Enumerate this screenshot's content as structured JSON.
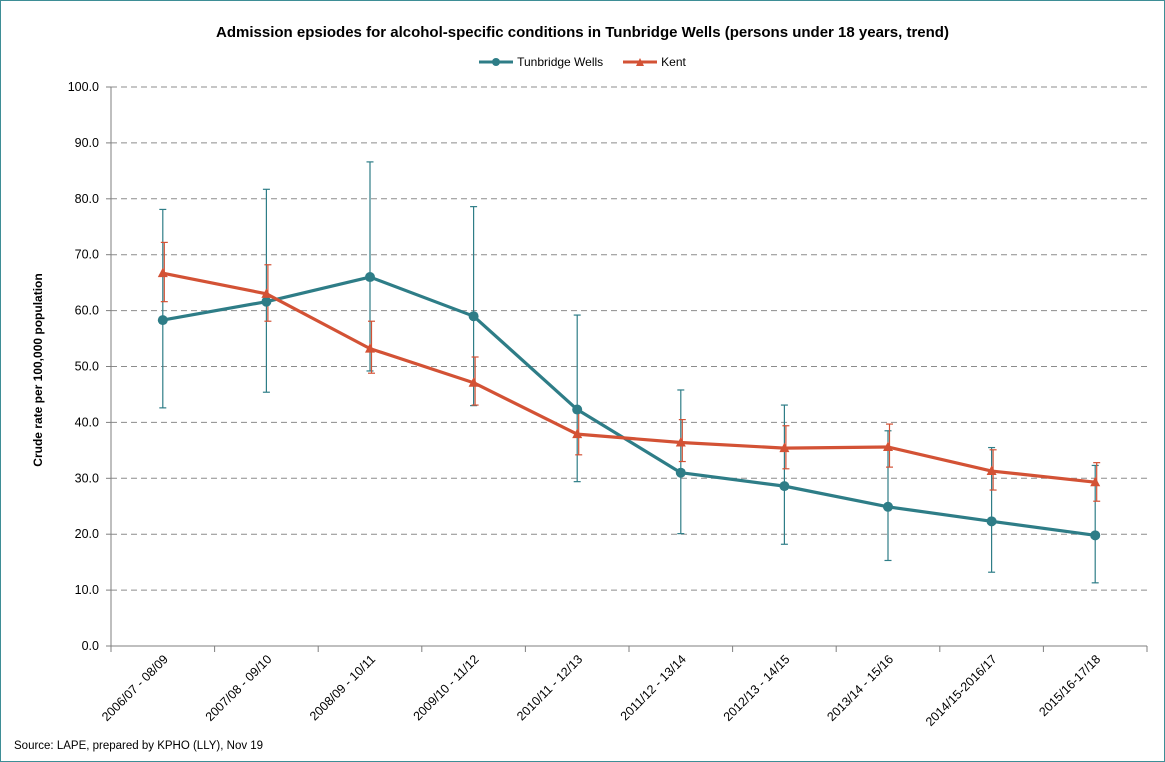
{
  "chart_data": {
    "type": "line",
    "title": "Admission epsiodes for alcohol-specific conditions in Tunbridge Wells (persons under 18 years, trend)",
    "ylabel": "Crude rate per 100,000 population",
    "xlabel": "",
    "ylim": [
      0,
      100
    ],
    "yticks": [
      "0.0",
      "10.0",
      "20.0",
      "30.0",
      "40.0",
      "50.0",
      "60.0",
      "70.0",
      "80.0",
      "90.0",
      "100.0"
    ],
    "grid": "horizontal dashed",
    "legend_position": "top",
    "categories": [
      "2006/07 - 08/09",
      "2007/08 - 09/10",
      "2008/09 - 10/11",
      "2009/10 - 11/12",
      "2010/11 - 12/13",
      "2011/12 - 13/14",
      "2012/13 - 14/15",
      "2013/14 - 15/16",
      "2014/15-2016/17",
      "2015/16-17/18"
    ],
    "series": [
      {
        "name": "Tunbridge Wells",
        "color": "#2e7d87",
        "marker": "circle",
        "values": [
          58.3,
          61.6,
          66.0,
          59.0,
          42.3,
          31.0,
          28.6,
          24.9,
          22.3,
          19.8
        ],
        "lower": [
          42.6,
          45.4,
          49.2,
          43.0,
          29.4,
          20.1,
          18.2,
          15.3,
          13.2,
          11.3
        ],
        "upper": [
          78.1,
          81.7,
          86.6,
          78.6,
          59.2,
          45.8,
          43.1,
          38.5,
          35.5,
          32.3
        ]
      },
      {
        "name": "Kent",
        "color": "#d35235",
        "marker": "triangle",
        "values": [
          66.7,
          63.0,
          53.2,
          47.1,
          37.9,
          36.4,
          35.4,
          35.6,
          31.3,
          29.3
        ],
        "lower": [
          61.6,
          58.1,
          48.8,
          43.1,
          34.2,
          33.0,
          31.7,
          32.0,
          27.9,
          25.9
        ],
        "upper": [
          72.2,
          68.2,
          58.1,
          51.7,
          42.0,
          40.5,
          39.4,
          39.7,
          35.1,
          32.8
        ]
      }
    ]
  },
  "footer": {
    "source": "Source: LAPE, prepared by KPHO (LLY), Nov 19"
  }
}
